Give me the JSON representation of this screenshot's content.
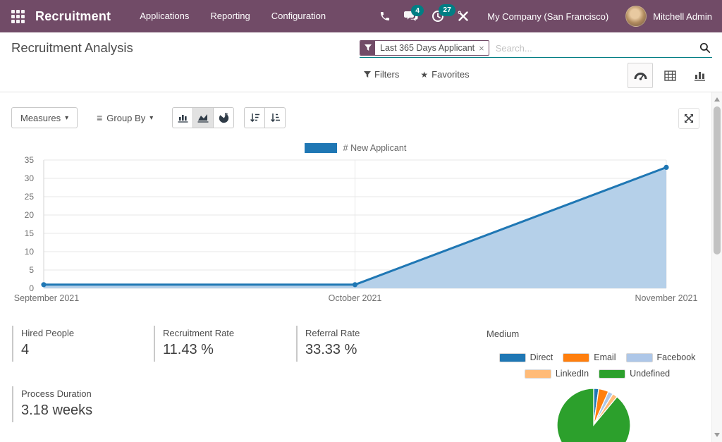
{
  "theme": {
    "header_bg": "#714B67",
    "accent_teal": "#017E84",
    "primary_blue": "#1F77B4",
    "area_fill": "#B5D0E9",
    "grid_color": "#E7E7E7",
    "text_dark": "#4C4C4C",
    "text_muted": "#666666"
  },
  "header": {
    "app_name": "Recruitment",
    "menus": [
      "Applications",
      "Reporting",
      "Configuration"
    ],
    "message_badge": "4",
    "activity_badge": "27",
    "company": "My Company (San Francisco)",
    "user": "Mitchell Admin"
  },
  "control_panel": {
    "title": "Recruitment Analysis",
    "facet_label": "Last 365 Days Applicant",
    "facet_remove": "×",
    "search_placeholder": "Search...",
    "filters_label": "Filters",
    "favorites_label": "Favorites"
  },
  "toolbar": {
    "measures_label": "Measures",
    "group_by_label": "Group By",
    "group_by_prefix": "≡",
    "caret": "▾"
  },
  "icons": {
    "apps_grid": "3x3-dot-grid",
    "phone": "phone-receiver",
    "messages": "chat-bubbles",
    "activities": "clock",
    "tools": "crossed-tools",
    "search": "magnifier",
    "filter": "funnel",
    "favorites": "star",
    "view_dashboard": "tachometer",
    "view_pivot": "table-grid",
    "view_graph": "bar-chart",
    "chart_bar": "bar-chart",
    "chart_area": "area-chart",
    "chart_pie": "pie-chart",
    "sort_desc": "arrow-down-wide-bars",
    "sort_asc": "arrow-down-narrow-bars",
    "expand": "arrows-expand"
  },
  "kpis": [
    {
      "label": "Hired People",
      "value": "4"
    },
    {
      "label": "Recruitment Rate",
      "value": "11.43 %"
    },
    {
      "label": "Referral Rate",
      "value": "33.33 %"
    },
    {
      "label": "Process Duration",
      "value": "3.18 weeks"
    }
  ],
  "medium": {
    "title": "Medium"
  },
  "chart_data": [
    {
      "type": "area",
      "title": "",
      "x": [
        "September 2021",
        "October 2021",
        "November 2021"
      ],
      "series": [
        {
          "name": "# New Applicant",
          "color": "#1F77B4",
          "values": [
            1,
            1,
            33
          ]
        }
      ],
      "ylim": [
        0,
        35
      ],
      "yticks": [
        0,
        5,
        10,
        15,
        20,
        25,
        30,
        35
      ],
      "grid": true,
      "legend_position": "top"
    },
    {
      "type": "pie",
      "title": "Medium",
      "labels": [
        "Direct",
        "Email",
        "Facebook",
        "LinkedIn",
        "Undefined"
      ],
      "values_pct": [
        2.2,
        4.4,
        2.2,
        2.2,
        89.0
      ],
      "colors": [
        "#1F77B4",
        "#FF7F0E",
        "#AEC7E8",
        "#FFBB78",
        "#2CA02C"
      ],
      "legend_position": "top"
    }
  ]
}
